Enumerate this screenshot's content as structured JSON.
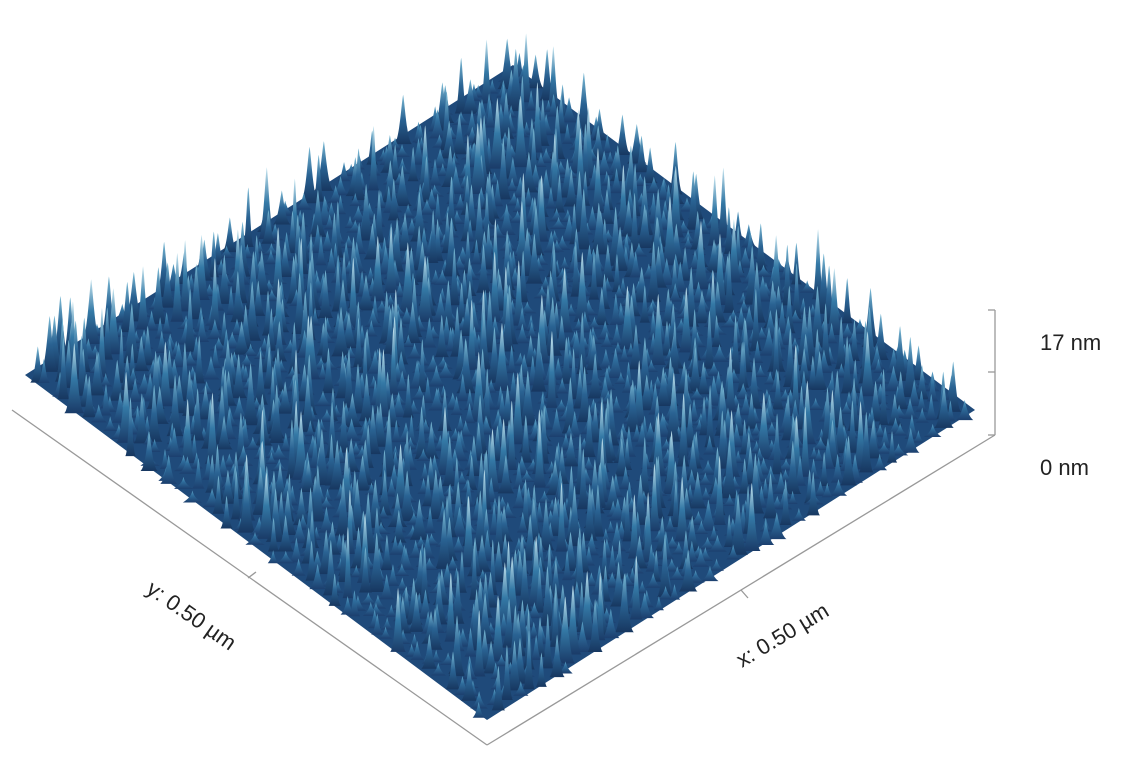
{
  "z_axis": {
    "max_label": "17 nm",
    "min_label": "0 nm"
  },
  "x_axis": {
    "label": "x: 0.50 µm"
  },
  "y_axis": {
    "label": "y: 0.50 µm"
  }
}
